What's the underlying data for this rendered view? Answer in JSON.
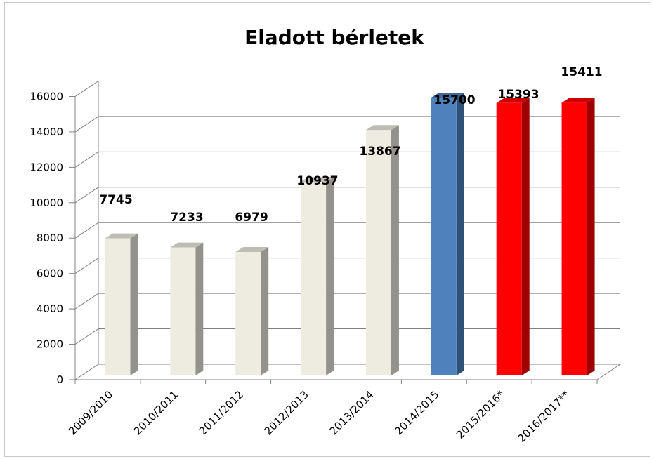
{
  "chart_data": {
    "type": "bar",
    "title": "Eladott bérletek",
    "categories": [
      "2009/2010",
      "2010/2011",
      "2011/2012",
      "2012/2013",
      "2013/2014",
      "2014/2015",
      "2015/2016*",
      "2016/2017**"
    ],
    "values": [
      7745,
      7233,
      6979,
      10937,
      13867,
      15700,
      15393,
      15411
    ],
    "data_labels": [
      "7745",
      "7233",
      "6979",
      "10937",
      "13867",
      "15700",
      "15393",
      "15411"
    ],
    "bar_colors": [
      "#eeece1",
      "#eeece1",
      "#eeece1",
      "#eeece1",
      "#eeece1",
      "#4f81bd",
      "#ff0000",
      "#ff0000"
    ],
    "y_ticks": [
      "0",
      "2000",
      "4000",
      "6000",
      "8000",
      "10000",
      "12000",
      "14000",
      "16000"
    ],
    "ylim": [
      0,
      16000
    ],
    "grid": true,
    "legend": "none",
    "style": "3d-bars"
  }
}
